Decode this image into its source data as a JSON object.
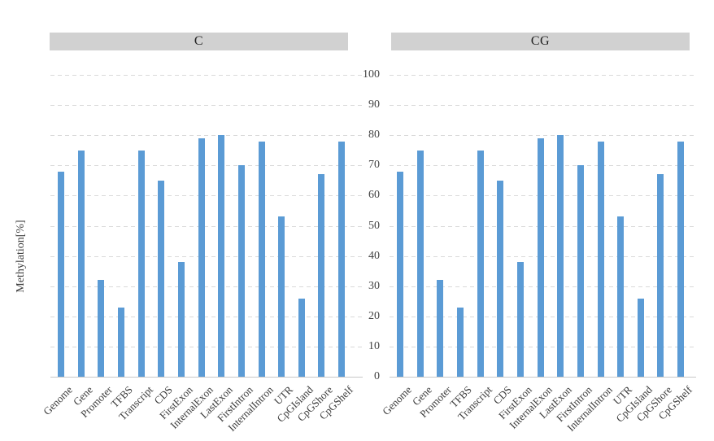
{
  "chart_data": {
    "type": "bar",
    "title": "",
    "xlabel": "",
    "ylabel": "Methylation[%]",
    "ylim": [
      0,
      100
    ],
    "yticks": [
      0,
      10,
      20,
      30,
      40,
      50,
      60,
      70,
      80,
      90,
      100
    ],
    "grid": "horizontal-dashed",
    "legend_position": "none",
    "bar_color": "#5b9bd5",
    "panel_header_bg": "#d1d1d1",
    "categories": [
      "Genome",
      "Gene",
      "Promoter",
      "TFBS",
      "Transcript",
      "CDS",
      "FirstExon",
      "InternalExon",
      "LastExon",
      "FirstIntron",
      "InternalIntron",
      "UTR",
      "CpGIsland",
      "CpGShore",
      "CpGShelf"
    ],
    "series": [
      {
        "name": "C",
        "values": [
          68,
          75,
          32,
          23,
          75,
          65,
          38,
          79,
          80,
          70,
          78,
          53,
          26,
          67,
          78
        ]
      },
      {
        "name": "CG",
        "values": [
          68,
          75,
          32,
          23,
          75,
          65,
          38,
          79,
          80,
          70,
          78,
          53,
          26,
          67,
          78
        ]
      }
    ]
  }
}
